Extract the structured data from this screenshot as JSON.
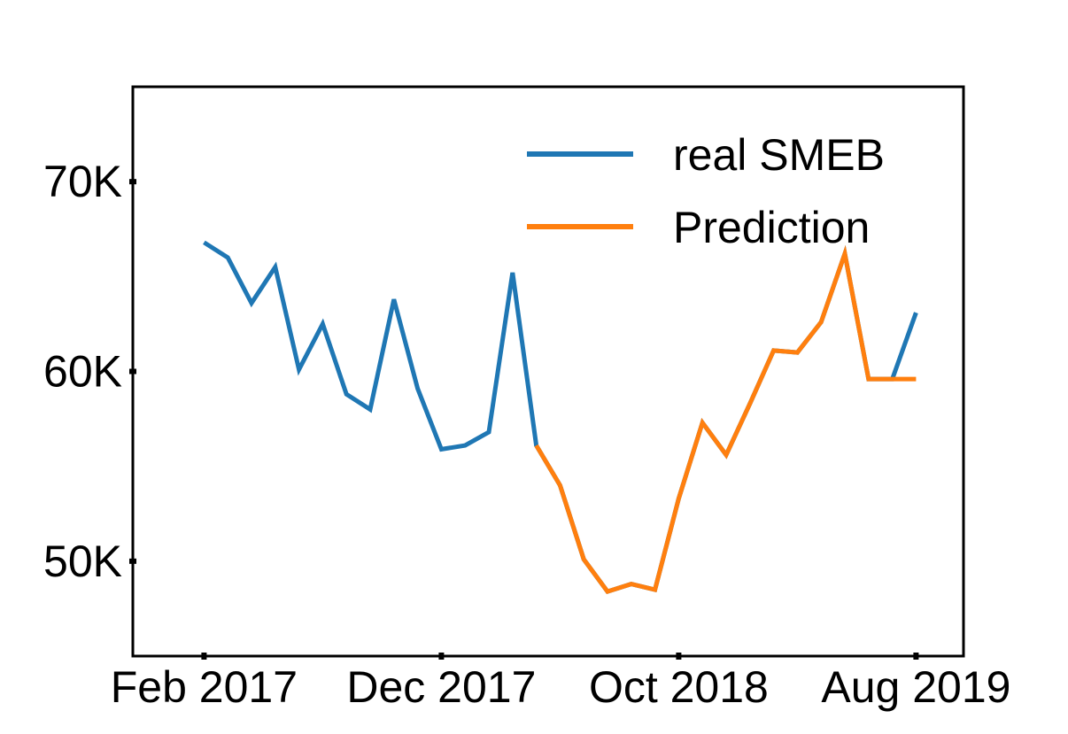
{
  "chart_data": {
    "type": "line",
    "title": "",
    "xlabel": "",
    "ylabel": "",
    "x_tick_labels": [
      "Feb 2017",
      "Dec 2017",
      "Oct 2018",
      "Aug 2019"
    ],
    "y_tick_labels": [
      "50K",
      "60K",
      "70K"
    ],
    "y_ticks": [
      50000,
      60000,
      70000
    ],
    "ylim": [
      45000,
      75000
    ],
    "xlim": [
      "2016-11",
      "2019-10"
    ],
    "legend_placement": "top-right",
    "grid": false,
    "series": [
      {
        "name": "real SMEB",
        "color": "#1f77b4",
        "points": [
          {
            "x": "2017-02",
            "y": 66800
          },
          {
            "x": "2017-03",
            "y": 66000
          },
          {
            "x": "2017-04",
            "y": 63600
          },
          {
            "x": "2017-05",
            "y": 65500
          },
          {
            "x": "2017-06",
            "y": 60100
          },
          {
            "x": "2017-07",
            "y": 62500
          },
          {
            "x": "2017-08",
            "y": 58800
          },
          {
            "x": "2017-09",
            "y": 58000
          },
          {
            "x": "2017-10",
            "y": 63800
          },
          {
            "x": "2017-11",
            "y": 59100
          },
          {
            "x": "2017-12",
            "y": 55900
          },
          {
            "x": "2018-01",
            "y": 56100
          },
          {
            "x": "2018-02",
            "y": 56800
          },
          {
            "x": "2018-03",
            "y": 65200
          },
          {
            "x": "2018-04",
            "y": 56100
          },
          {
            "x": "2018-05",
            "y": 54000
          },
          {
            "x": "2018-06",
            "y": 50100
          },
          {
            "x": "2018-07",
            "y": 48400
          },
          {
            "x": "2018-08",
            "y": 48800
          },
          {
            "x": "2018-09",
            "y": 48500
          },
          {
            "x": "2018-10",
            "y": 53300
          },
          {
            "x": "2018-11",
            "y": 57300
          },
          {
            "x": "2018-12",
            "y": 55600
          },
          {
            "x": "2019-01",
            "y": 58300
          },
          {
            "x": "2019-02",
            "y": 61100
          },
          {
            "x": "2019-03",
            "y": 61000
          },
          {
            "x": "2019-04",
            "y": 62600
          },
          {
            "x": "2019-05",
            "y": 66200
          },
          {
            "x": "2019-06",
            "y": 59600
          },
          {
            "x": "2019-07",
            "y": 59600
          },
          {
            "x": "2019-08",
            "y": 63100
          }
        ]
      },
      {
        "name": "Prediction",
        "color": "#ff7f0e",
        "points": [
          {
            "x": "2018-04",
            "y": 56100
          },
          {
            "x": "2018-05",
            "y": 54000
          },
          {
            "x": "2018-06",
            "y": 50100
          },
          {
            "x": "2018-07",
            "y": 48400
          },
          {
            "x": "2018-08",
            "y": 48800
          },
          {
            "x": "2018-09",
            "y": 48500
          },
          {
            "x": "2018-10",
            "y": 53300
          },
          {
            "x": "2018-11",
            "y": 57300
          },
          {
            "x": "2018-12",
            "y": 55600
          },
          {
            "x": "2019-01",
            "y": 58300
          },
          {
            "x": "2019-02",
            "y": 61100
          },
          {
            "x": "2019-03",
            "y": 61000
          },
          {
            "x": "2019-04",
            "y": 62600
          },
          {
            "x": "2019-05",
            "y": 66200
          },
          {
            "x": "2019-06",
            "y": 59600
          },
          {
            "x": "2019-07",
            "y": 59600
          },
          {
            "x": "2019-08",
            "y": 59600
          }
        ]
      }
    ]
  }
}
